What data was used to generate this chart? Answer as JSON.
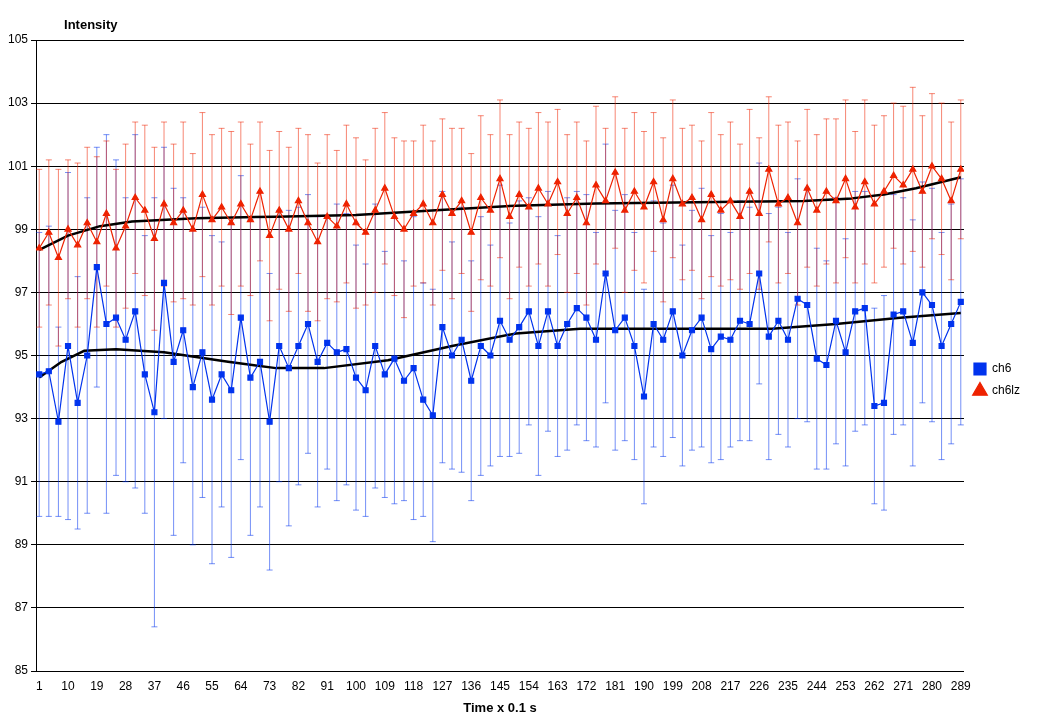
{
  "chart_data": {
    "type": "line",
    "ylabel": "Intensity",
    "xlabel": "Time x 0.1 s",
    "xlim": [
      0,
      290
    ],
    "xticks": [
      1,
      10,
      19,
      28,
      37,
      46,
      55,
      64,
      73,
      82,
      91,
      100,
      109,
      118,
      127,
      136,
      145,
      154,
      163,
      172,
      181,
      190,
      199,
      208,
      217,
      226,
      235,
      244,
      253,
      262,
      271,
      280,
      289
    ],
    "ylim": [
      85,
      105
    ],
    "yticks": [
      85,
      87,
      89,
      91,
      93,
      95,
      97,
      99,
      101,
      103,
      105
    ],
    "grid": "y",
    "legend": "right",
    "line_style": "solid",
    "x": [
      1,
      4,
      7,
      10,
      13,
      16,
      19,
      22,
      25,
      28,
      31,
      34,
      37,
      40,
      43,
      46,
      49,
      52,
      55,
      58,
      61,
      64,
      67,
      70,
      73,
      76,
      79,
      82,
      85,
      88,
      91,
      94,
      97,
      100,
      103,
      106,
      109,
      112,
      115,
      118,
      121,
      124,
      127,
      130,
      133,
      136,
      139,
      142,
      145,
      148,
      151,
      154,
      157,
      160,
      163,
      166,
      169,
      172,
      175,
      178,
      181,
      184,
      187,
      190,
      193,
      196,
      199,
      202,
      205,
      208,
      211,
      214,
      217,
      220,
      223,
      226,
      229,
      232,
      235,
      238,
      241,
      244,
      247,
      250,
      253,
      256,
      259,
      262,
      265,
      268,
      271,
      274,
      277,
      280,
      283,
      286,
      289
    ],
    "series": [
      {
        "name": "ch6",
        "color": "#0033ee",
        "marker": "square",
        "values": [
          94.4,
          94.5,
          92.9,
          95.3,
          93.5,
          95.0,
          97.8,
          96.0,
          96.2,
          95.5,
          96.4,
          94.4,
          93.2,
          97.3,
          94.8,
          95.8,
          94.0,
          95.1,
          93.6,
          94.4,
          93.9,
          96.2,
          94.3,
          94.8,
          92.9,
          95.3,
          94.6,
          95.3,
          96.0,
          94.8,
          95.4,
          95.1,
          95.2,
          94.3,
          93.9,
          95.3,
          94.4,
          94.9,
          94.2,
          94.6,
          93.6,
          93.1,
          95.9,
          95.0,
          95.5,
          94.2,
          95.3,
          95.0,
          96.1,
          95.5,
          95.9,
          96.4,
          95.3,
          96.4,
          95.3,
          96.0,
          96.5,
          96.2,
          95.5,
          97.6,
          95.8,
          96.2,
          95.3,
          93.7,
          96.0,
          95.5,
          96.4,
          95.0,
          95.8,
          96.2,
          95.2,
          95.6,
          95.5,
          96.1,
          96.0,
          97.6,
          95.6,
          96.1,
          95.5,
          96.8,
          96.6,
          94.9,
          94.7,
          96.1,
          95.1,
          96.4,
          96.5,
          93.4,
          93.5,
          96.3,
          96.4,
          95.4,
          97.0,
          96.6,
          95.3,
          96.0,
          96.7
        ],
        "errors": [
          4.5,
          4.6,
          3.0,
          5.5,
          4.0,
          5.0,
          3.8,
          6.0,
          5.0,
          4.5,
          5.6,
          4.4,
          6.8,
          4.3,
          5.5,
          4.2,
          5.0,
          4.6,
          5.2,
          4.2,
          5.3,
          4.5,
          5.0,
          4.6,
          4.7,
          4.3,
          5.0,
          4.4,
          4.1,
          4.6,
          4.0,
          4.7,
          4.3,
          4.2,
          4.0,
          4.5,
          3.9,
          4.6,
          3.8,
          4.8,
          3.7,
          4.0,
          4.3,
          3.6,
          4.2,
          3.8,
          4.1,
          3.5,
          4.3,
          3.7,
          4.0,
          3.6,
          4.1,
          3.8,
          3.5,
          4.0,
          3.7,
          3.9,
          3.4,
          4.1,
          3.8,
          3.9,
          3.6,
          3.4,
          3.9,
          3.7,
          4.0,
          3.5,
          3.8,
          4.1,
          3.6,
          3.9,
          3.4,
          3.8,
          3.7,
          3.5,
          3.9,
          3.6,
          3.4,
          3.8,
          3.7,
          3.5,
          3.3,
          3.9,
          3.6,
          3.8,
          3.7,
          3.1,
          3.4,
          3.8,
          3.6,
          3.9,
          3.5,
          3.7,
          3.6,
          3.8,
          3.9
        ]
      },
      {
        "name": "ch6lz",
        "color": "#ee2200",
        "marker": "triangle",
        "values": [
          98.4,
          98.9,
          98.1,
          99.0,
          98.5,
          99.2,
          98.6,
          99.5,
          98.4,
          99.1,
          100.0,
          99.6,
          98.7,
          99.8,
          99.2,
          99.6,
          99.0,
          100.1,
          99.3,
          99.7,
          99.2,
          99.8,
          99.3,
          100.2,
          98.8,
          99.6,
          99.0,
          99.9,
          99.2,
          98.6,
          99.4,
          99.1,
          99.8,
          99.2,
          98.9,
          99.6,
          100.3,
          99.4,
          99.0,
          99.5,
          99.8,
          99.2,
          100.1,
          99.5,
          99.9,
          98.9,
          100.0,
          99.6,
          100.6,
          99.4,
          100.1,
          99.7,
          100.3,
          99.8,
          100.5,
          99.5,
          100.0,
          99.2,
          100.4,
          99.9,
          100.8,
          99.6,
          100.2,
          99.7,
          100.5,
          99.3,
          100.6,
          99.8,
          100.0,
          99.3,
          100.1,
          99.6,
          99.9,
          99.4,
          100.2,
          99.5,
          100.9,
          99.8,
          100.0,
          99.2,
          100.3,
          99.6,
          100.2,
          99.9,
          100.6,
          99.7,
          100.5,
          99.8,
          100.2,
          100.7,
          100.4,
          100.9,
          100.2,
          101.0,
          100.6,
          99.9,
          100.9
        ],
        "errors": [
          2.5,
          2.3,
          2.8,
          2.2,
          2.6,
          2.4,
          2.7,
          2.3,
          2.5,
          2.6,
          2.4,
          2.7,
          2.9,
          2.6,
          2.5,
          2.8,
          2.4,
          2.6,
          2.7,
          2.5,
          2.9,
          2.6,
          2.4,
          2.2,
          2.7,
          2.5,
          2.6,
          2.3,
          2.8,
          2.5,
          2.6,
          2.4,
          2.5,
          2.7,
          2.3,
          2.6,
          2.4,
          2.5,
          2.8,
          2.3,
          2.5,
          2.6,
          2.4,
          2.7,
          2.3,
          2.5,
          2.6,
          2.4,
          2.5,
          2.6,
          2.3,
          2.5,
          2.4,
          2.6,
          2.3,
          2.5,
          2.4,
          2.6,
          2.5,
          2.3,
          2.4,
          2.6,
          2.5,
          2.4,
          2.2,
          2.6,
          2.5,
          2.4,
          2.3,
          2.5,
          2.6,
          2.4,
          2.5,
          2.3,
          2.6,
          2.4,
          2.3,
          2.5,
          2.4,
          2.6,
          2.5,
          2.4,
          2.3,
          2.6,
          2.5,
          2.4,
          2.6,
          2.5,
          2.4,
          2.3,
          2.5,
          2.6,
          2.4,
          2.3,
          2.4,
          2.5,
          2.2
        ]
      },
      {
        "type": "line",
        "color": "#000000",
        "marker": "none",
        "x": [
          1,
          10,
          20,
          30,
          50,
          75,
          100,
          125,
          150,
          175,
          200,
          225,
          240,
          255,
          265,
          275,
          289
        ],
        "values": [
          98.35,
          98.8,
          99.1,
          99.25,
          99.35,
          99.4,
          99.45,
          99.6,
          99.75,
          99.82,
          99.85,
          99.88,
          99.9,
          99.98,
          100.1,
          100.3,
          100.65
        ]
      },
      {
        "type": "line",
        "color": "#000000",
        "marker": "none",
        "x": [
          1,
          8,
          15,
          25,
          40,
          60,
          75,
          90,
          110,
          130,
          150,
          170,
          200,
          230,
          250,
          270,
          289
        ],
        "values": [
          94.3,
          94.8,
          95.15,
          95.2,
          95.1,
          94.8,
          94.6,
          94.6,
          94.85,
          95.3,
          95.7,
          95.85,
          95.85,
          95.85,
          96.0,
          96.2,
          96.35
        ]
      }
    ]
  }
}
